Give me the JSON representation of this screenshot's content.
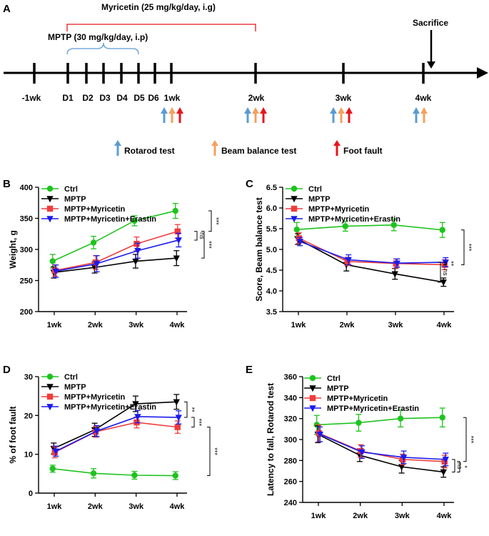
{
  "timeline": {
    "panel_letter": "A",
    "myricetin_label": "Myricetin (25 mg/kg/day, i.g)",
    "mptp_label": "MPTP (30 mg/kg/day, i.p)",
    "sacrifice_label": "Sacrifice",
    "ticks": [
      "-1wk",
      "D1",
      "D2",
      "D3",
      "D4",
      "D5",
      "D6",
      "1wk",
      "2wk",
      "3wk",
      "4wk"
    ],
    "legend": {
      "rotarod": "Rotarod test",
      "beam": "Beam balance test",
      "foot_fault": "Foot fault"
    },
    "colors": {
      "rotarod": "#5b9bd5",
      "beam": "#f4a15d",
      "foot_fault": "#e8141b",
      "myricetin": "#e8141b",
      "mptp": "#5b9bd5"
    }
  },
  "chart_data": [
    {
      "panel": "B",
      "type": "line",
      "title": "",
      "xlabel": "",
      "ylabel": "Weight, g",
      "categories": [
        "1wk",
        "2wk",
        "3wk",
        "4wk"
      ],
      "ylim": [
        200,
        400
      ],
      "yticks": [
        "200",
        "250",
        "300",
        "350",
        "400"
      ],
      "legend_position": "top-left",
      "series": [
        {
          "name": "Ctrl",
          "color": "#1ec31e",
          "marker": "circle",
          "values": [
            281,
            311,
            346,
            362
          ],
          "errors": [
            11,
            10,
            8,
            12
          ]
        },
        {
          "name": "MPTP",
          "color": "#000000",
          "marker": "triangle-down",
          "values": [
            263,
            271,
            281,
            286
          ],
          "errors": [
            9,
            9,
            11,
            12
          ]
        },
        {
          "name": "MPTP+Myricetin",
          "color": "#f03c3c",
          "marker": "square",
          "values": [
            266,
            279,
            309,
            329
          ],
          "errors": [
            9,
            11,
            11,
            11
          ]
        },
        {
          "name": "MPTP+Myricetin+Erastin",
          "color": "#1a1aee",
          "marker": "triangle-down",
          "values": [
            265,
            277,
            298,
            315
          ],
          "errors": [
            10,
            13,
            12,
            11
          ]
        }
      ],
      "significance": [
        "ns",
        "***",
        "***"
      ]
    },
    {
      "panel": "C",
      "type": "line",
      "title": "",
      "xlabel": "",
      "ylabel": "Score, Beam balance test",
      "categories": [
        "1wk",
        "2wk",
        "3wk",
        "4wk"
      ],
      "ylim": [
        3.5,
        6.5
      ],
      "yticks": [
        "3.5",
        "4.0",
        "4.5",
        "5.0",
        "5.5",
        "6.0",
        "6.5"
      ],
      "legend_position": "top-left",
      "series": [
        {
          "name": "Ctrl",
          "color": "#1ec31e",
          "marker": "circle",
          "values": [
            5.48,
            5.56,
            5.59,
            5.47
          ],
          "errors": [
            0.17,
            0.12,
            0.14,
            0.18
          ]
        },
        {
          "name": "MPTP",
          "color": "#000000",
          "marker": "triangle-down",
          "values": [
            5.25,
            4.63,
            4.41,
            4.21
          ],
          "errors": [
            0.13,
            0.15,
            0.13,
            0.1
          ]
        },
        {
          "name": "MPTP+Myricetin",
          "color": "#f03c3c",
          "marker": "square",
          "values": [
            5.27,
            4.71,
            4.66,
            4.63
          ],
          "errors": [
            0.13,
            0.1,
            0.11,
            0.12
          ]
        },
        {
          "name": "MPTP+Myricetin+Erastin",
          "color": "#1a1aee",
          "marker": "triangle-down",
          "values": [
            5.19,
            4.75,
            4.67,
            4.69
          ],
          "errors": [
            0.1,
            0.12,
            0.1,
            0.11
          ]
        }
      ],
      "significance": [
        "ns",
        "**",
        "***"
      ]
    },
    {
      "panel": "D",
      "type": "line",
      "title": "",
      "xlabel": "",
      "ylabel": "% of foot fault",
      "categories": [
        "1wk",
        "2wk",
        "3wk",
        "4wk"
      ],
      "ylim": [
        0,
        30
      ],
      "yticks": [
        "0",
        "10",
        "20",
        "30"
      ],
      "legend_position": "top-left",
      "series": [
        {
          "name": "Ctrl",
          "color": "#1ec31e",
          "marker": "circle",
          "values": [
            6.3,
            5.1,
            4.6,
            4.5
          ],
          "errors": [
            0.9,
            1.2,
            1.0,
            1.0
          ]
        },
        {
          "name": "MPTP",
          "color": "#000000",
          "marker": "triangle-down",
          "values": [
            11.5,
            16.3,
            23.0,
            23.5
          ],
          "errors": [
            1.4,
            1.7,
            2.0,
            1.9
          ]
        },
        {
          "name": "MPTP+Myricetin",
          "color": "#f03c3c",
          "marker": "square",
          "values": [
            10.5,
            15.8,
            18.2,
            17.0
          ],
          "errors": [
            1.4,
            1.4,
            1.4,
            1.6
          ]
        },
        {
          "name": "MPTP+Myricetin+Erastin",
          "color": "#1a1aee",
          "marker": "triangle-down",
          "values": [
            10.8,
            16.0,
            19.7,
            19.5
          ],
          "errors": [
            1.3,
            1.4,
            1.6,
            1.7
          ]
        }
      ],
      "significance": [
        "**",
        "***",
        "***"
      ]
    },
    {
      "panel": "E",
      "type": "line",
      "title": "",
      "xlabel": "",
      "ylabel": "Latency to fall, Rotarod test",
      "categories": [
        "1wk",
        "2wk",
        "3wk",
        "4wk"
      ],
      "ylim": [
        240,
        360
      ],
      "yticks": [
        "240",
        "260",
        "280",
        "300",
        "320",
        "340",
        "360"
      ],
      "legend_position": "top-left",
      "series": [
        {
          "name": "Ctrl",
          "color": "#1ec31e",
          "marker": "circle",
          "values": [
            314,
            316,
            320,
            321
          ],
          "errors": [
            9,
            8,
            8,
            9
          ]
        },
        {
          "name": "MPTP",
          "color": "#000000",
          "marker": "triangle-down",
          "values": [
            305,
            285,
            274,
            269
          ],
          "errors": [
            8,
            6,
            6,
            5
          ]
        },
        {
          "name": "MPTP+Myricetin",
          "color": "#f03c3c",
          "marker": "square",
          "values": [
            306,
            289,
            281,
            279
          ],
          "errors": [
            8,
            6,
            5,
            6
          ]
        },
        {
          "name": "MPTP+Myricetin+Erastin",
          "color": "#1a1aee",
          "marker": "triangle-down",
          "values": [
            305,
            288,
            283,
            281
          ],
          "errors": [
            7,
            6,
            6,
            6
          ]
        }
      ],
      "significance": [
        "ns",
        "*",
        "***"
      ]
    }
  ]
}
